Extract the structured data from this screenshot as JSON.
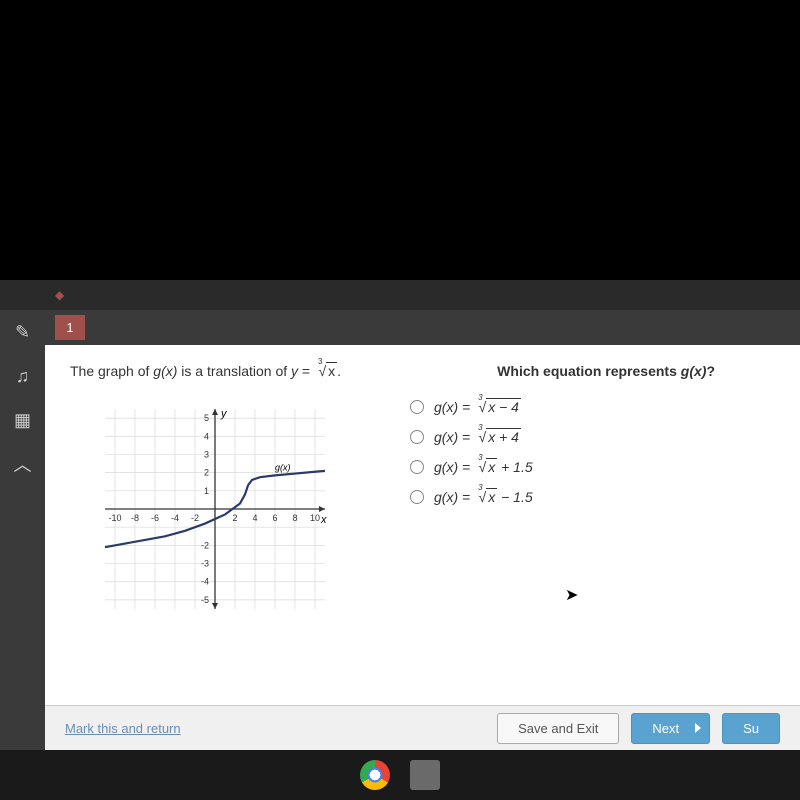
{
  "tab": {
    "number": "1"
  },
  "question": {
    "left_pre": "The graph of ",
    "left_gx": "g(x)",
    "left_mid": " is a translation of ",
    "left_y": "y",
    "left_eq": " = ",
    "left_root_idx": "3",
    "left_radicand": "x",
    "left_end": ".",
    "right_pre": "Which equation represents ",
    "right_gx": "g(x)",
    "right_end": "?"
  },
  "graph": {
    "y_label": "y",
    "x_label": "x",
    "curve_label": "g(x)",
    "x_ticks": [
      "-10",
      "-8",
      "-6",
      "-4",
      "-2",
      "2",
      "4",
      "6",
      "8",
      "10"
    ],
    "y_ticks_pos": [
      "1",
      "2",
      "3",
      "4",
      "5"
    ],
    "y_ticks_neg": [
      "-2",
      "-3",
      "-4",
      "-5"
    ],
    "xlim": [
      -11,
      11
    ],
    "ylim": [
      -5.5,
      5.5
    ],
    "grid_color": "#dadada",
    "axis_color": "#333333",
    "curve_color": "#2a3a6a",
    "curve_width": 2.2,
    "background_color": "#ffffff",
    "label_fontsize": 10,
    "curve_points": [
      [
        -11,
        -2.1
      ],
      [
        -9,
        -1.9
      ],
      [
        -7,
        -1.7
      ],
      [
        -5,
        -1.5
      ],
      [
        -3,
        -1.2
      ],
      [
        -1,
        -0.8
      ],
      [
        1,
        -0.3
      ],
      [
        2.5,
        0.3
      ],
      [
        3.0,
        0.8
      ],
      [
        3.3,
        1.3
      ],
      [
        3.7,
        1.6
      ],
      [
        4.5,
        1.75
      ],
      [
        6,
        1.85
      ],
      [
        8,
        1.95
      ],
      [
        10,
        2.05
      ],
      [
        11,
        2.1
      ]
    ]
  },
  "options": {
    "prefix": "g(x) = ",
    "root_idx": "3",
    "items": [
      {
        "radicand": "x − 4",
        "suffix": ""
      },
      {
        "radicand": "x + 4",
        "suffix": ""
      },
      {
        "radicand": "x",
        "suffix": " + 1.5"
      },
      {
        "radicand": "x",
        "suffix": " − 1.5"
      }
    ]
  },
  "footer": {
    "link": "Mark this and return",
    "save": "Save and Exit",
    "next": "Next",
    "submit": "Su"
  },
  "colors": {
    "tab_bg": "#a0504a",
    "sidebar_bg": "#3a3a3a",
    "content_bg": "#ffffff",
    "btn_primary": "#5aa3d0",
    "link": "#6a8db5"
  }
}
